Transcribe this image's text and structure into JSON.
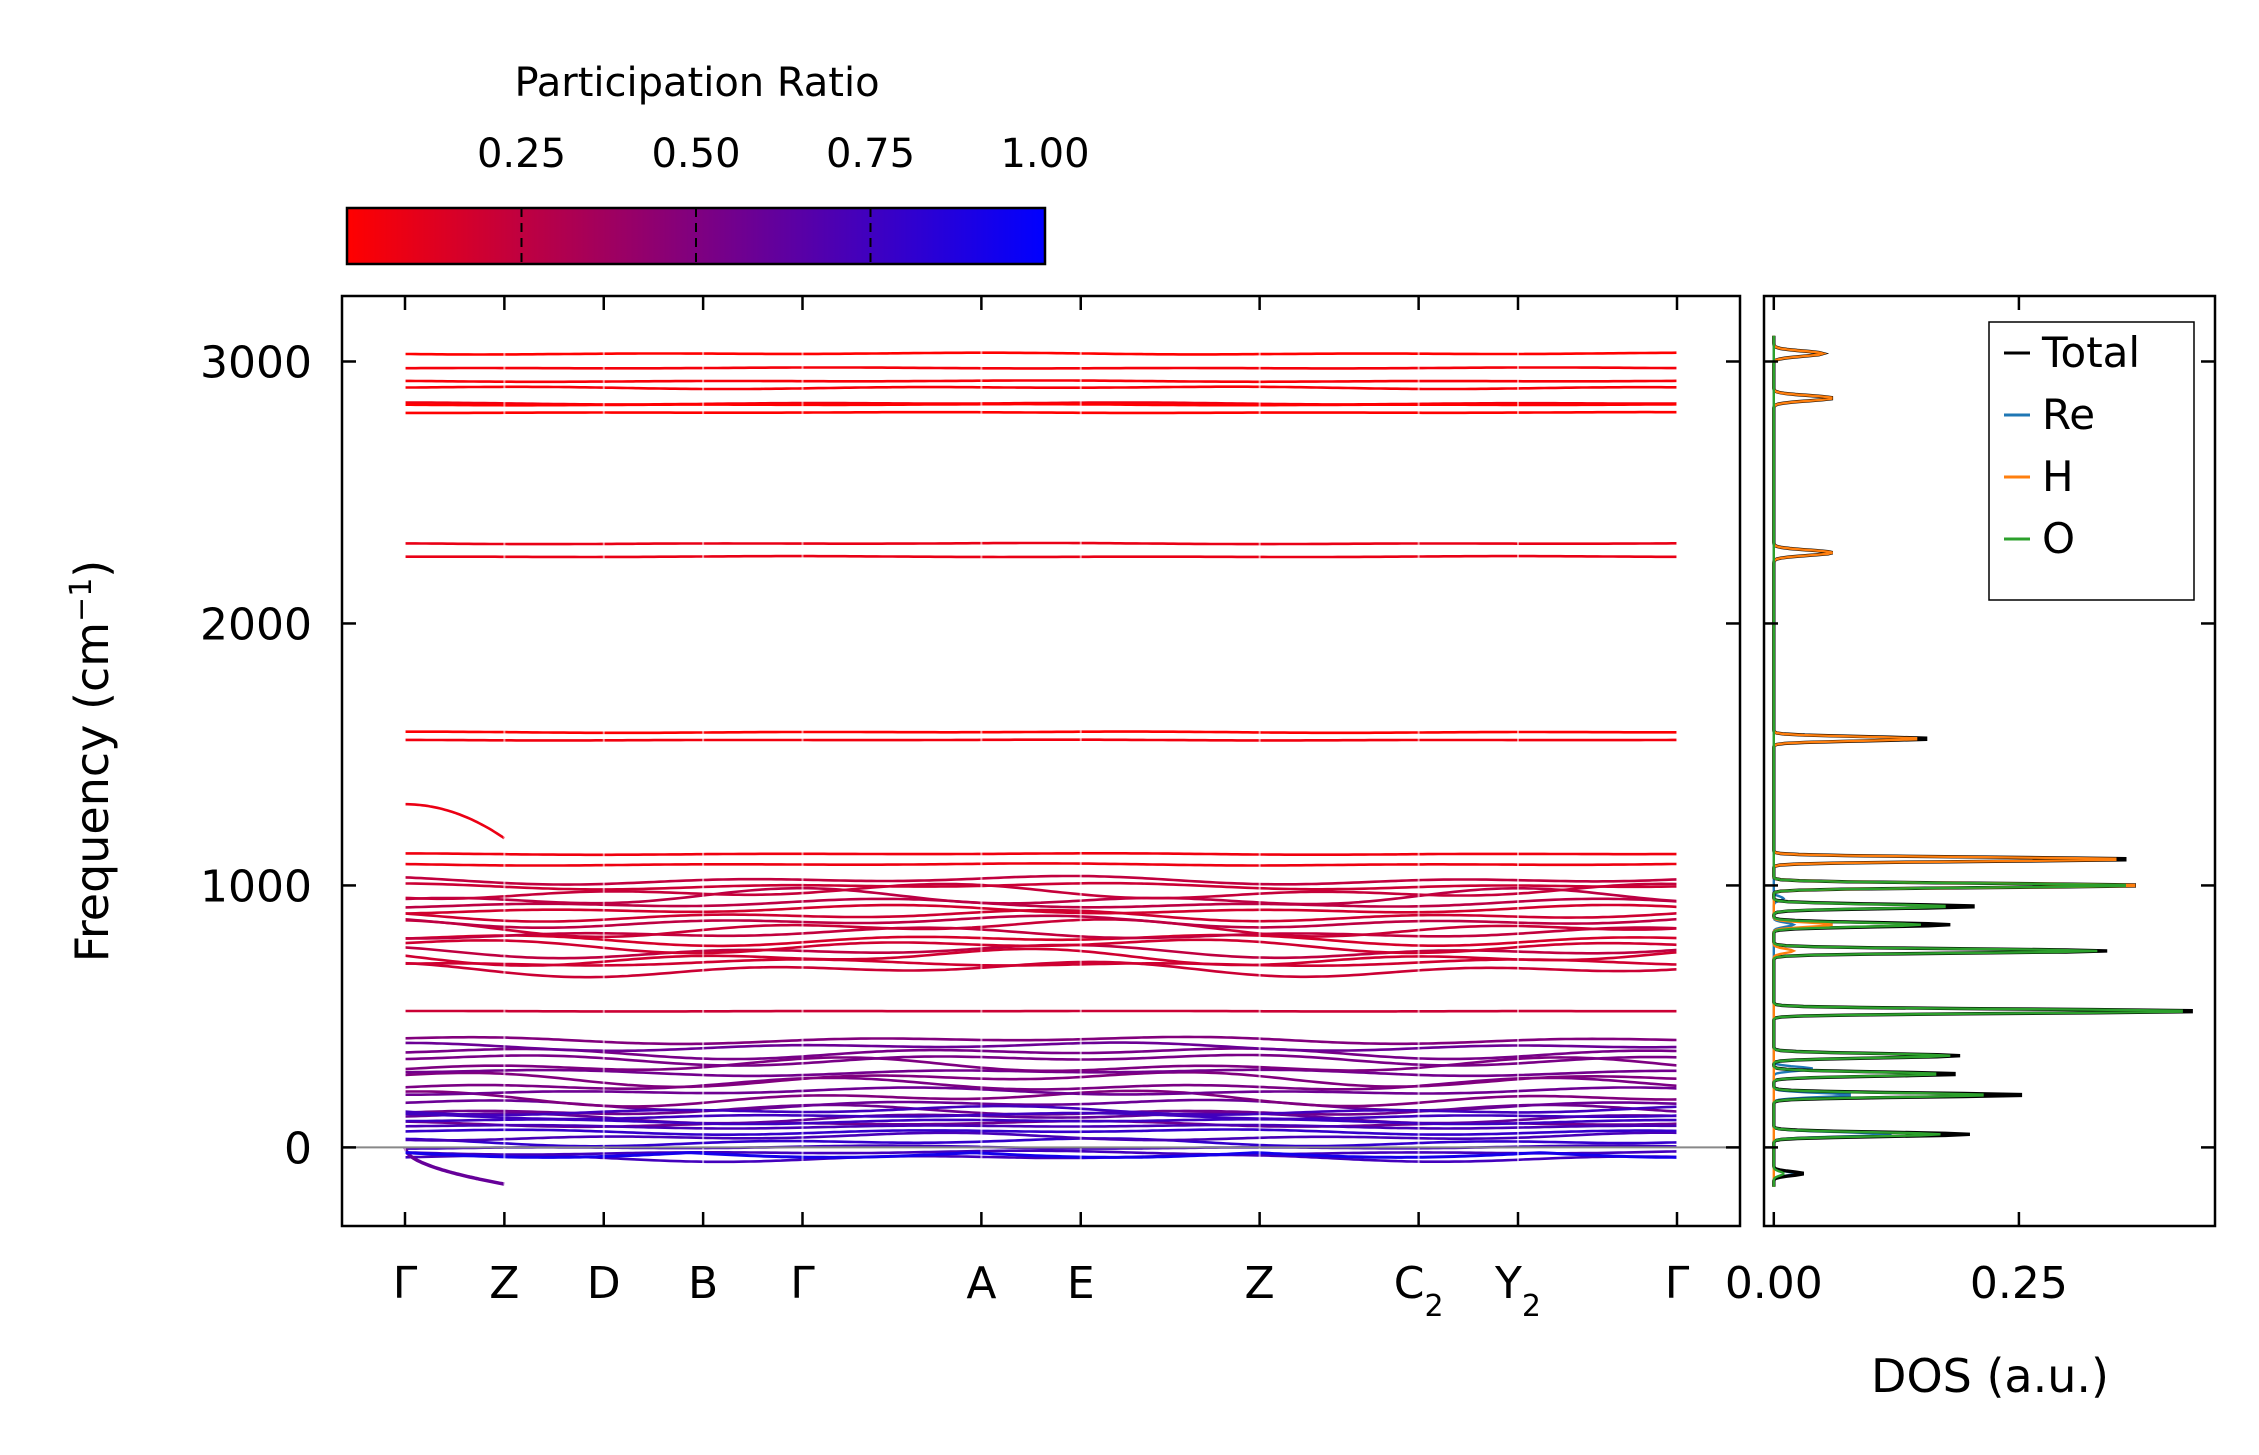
{
  "chart_data": [
    {
      "type": "line",
      "name": "phonon-band-structure",
      "ylabel": "Frequency (cm",
      "ylabel_sup": "−1",
      "ylabel_end": ")",
      "ylim": [
        -300,
        3250
      ],
      "yticks": [
        0,
        1000,
        2000,
        3000
      ],
      "ytick_labels": [
        "0",
        "1000",
        "2000",
        "3000"
      ],
      "kpath_positions": [
        0,
        1,
        2,
        3,
        4,
        5.8,
        6.8,
        8.6,
        10.2,
        11.2,
        12.8
      ],
      "kpath_labels": [
        {
          "main": "Γ",
          "sub": ""
        },
        {
          "main": "Z",
          "sub": ""
        },
        {
          "main": "D",
          "sub": ""
        },
        {
          "main": "B",
          "sub": ""
        },
        {
          "main": "Γ",
          "sub": ""
        },
        {
          "main": "A",
          "sub": ""
        },
        {
          "main": "E",
          "sub": ""
        },
        {
          "main": "Z",
          "sub": ""
        },
        {
          "main": "C",
          "sub": "2"
        },
        {
          "main": "Y",
          "sub": "2"
        },
        {
          "main": "Γ",
          "sub": ""
        }
      ],
      "zero_line": 0,
      "band_groups": [
        {
          "center": 3030,
          "count": 1,
          "spread": 25,
          "participation": 0.02
        },
        {
          "center": 2950,
          "count": 2,
          "spread": 25,
          "participation": 0.03
        },
        {
          "center": 2870,
          "count": 2,
          "spread": 30,
          "participation": 0.03
        },
        {
          "center": 2820,
          "count": 2,
          "spread": 15,
          "participation": 0.03
        },
        {
          "center": 2280,
          "count": 2,
          "spread": 25,
          "participation": 0.03
        },
        {
          "center": 1570,
          "count": 2,
          "spread": 15,
          "participation": 0.05
        },
        {
          "center": 1100,
          "count": 2,
          "spread": 20,
          "participation": 0.1
        },
        {
          "center": 850,
          "count": 16,
          "spread": 170,
          "participation": 0.22
        },
        {
          "center": 520,
          "count": 1,
          "spread": 5,
          "participation": 0.15
        },
        {
          "center": 250,
          "count": 14,
          "spread": 160,
          "participation": 0.55
        },
        {
          "center": 50,
          "count": 10,
          "spread": 90,
          "participation": 0.75
        }
      ],
      "acoustic_branch": {
        "start": 0,
        "end": -140,
        "participation": 0.6
      }
    },
    {
      "type": "line",
      "name": "density-of-states",
      "xlabel": "DOS (a.u.)",
      "xlim": [
        -0.01,
        0.45
      ],
      "xticks": [
        0.0,
        0.25
      ],
      "xtick_labels": [
        "0.00",
        "0.25"
      ],
      "ylim": [
        -300,
        3250
      ],
      "series": [
        {
          "name": "Total",
          "color": "#000000",
          "peaks": [
            [
              -100,
              0.03
            ],
            [
              50,
              0.2
            ],
            [
              200,
              0.26
            ],
            [
              280,
              0.19
            ],
            [
              350,
              0.19
            ],
            [
              520,
              0.44
            ],
            [
              750,
              0.34
            ],
            [
              850,
              0.18
            ],
            [
              920,
              0.21
            ],
            [
              1000,
              0.38
            ],
            [
              1100,
              0.37
            ],
            [
              1560,
              0.16
            ],
            [
              2270,
              0.06
            ],
            [
              2860,
              0.06
            ],
            [
              3030,
              0.05
            ]
          ]
        },
        {
          "name": "Re",
          "color": "#1f77b4",
          "peaks": [
            [
              -100,
              0.02
            ],
            [
              50,
              0.12
            ],
            [
              200,
              0.08
            ],
            [
              300,
              0.04
            ],
            [
              850,
              0.02
            ],
            [
              950,
              0.01
            ]
          ]
        },
        {
          "name": "H",
          "color": "#ff7f0e",
          "peaks": [
            [
              750,
              0.02
            ],
            [
              850,
              0.06
            ],
            [
              1000,
              0.38
            ],
            [
              1100,
              0.36
            ],
            [
              1560,
              0.15
            ],
            [
              2270,
              0.06
            ],
            [
              2860,
              0.06
            ],
            [
              3030,
              0.05
            ]
          ]
        },
        {
          "name": "O",
          "color": "#2ca02c",
          "peaks": [
            [
              -100,
              0.01
            ],
            [
              50,
              0.17
            ],
            [
              200,
              0.22
            ],
            [
              280,
              0.17
            ],
            [
              350,
              0.18
            ],
            [
              520,
              0.43
            ],
            [
              750,
              0.33
            ],
            [
              850,
              0.15
            ],
            [
              920,
              0.18
            ],
            [
              1000,
              0.37
            ]
          ]
        }
      ],
      "legend": [
        "Total",
        "Re",
        "H",
        "O"
      ],
      "legend_loc": "top-right"
    }
  ],
  "colorbar": {
    "title": "Participation Ratio",
    "ticks": [
      0.25,
      0.5,
      0.75,
      1.0
    ],
    "tick_labels": [
      "0.25",
      "0.50",
      "0.75",
      "1.00"
    ],
    "range": [
      0.0,
      1.0
    ],
    "color_low": "#ff0000",
    "color_high": "#0000ff"
  }
}
